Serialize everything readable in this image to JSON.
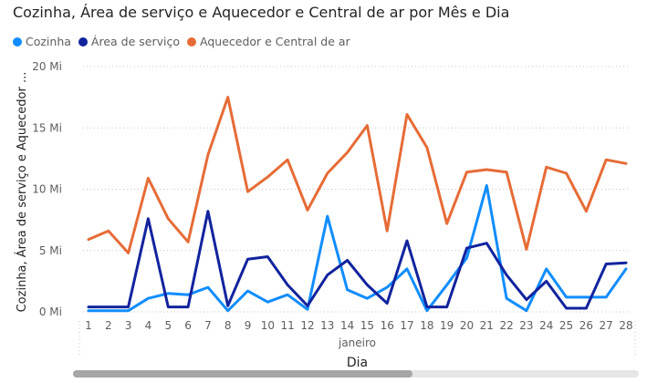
{
  "chart_data": {
    "type": "line",
    "title": "Cozinha, Área de serviço e Aquecedor e Central de ar por Mês e Dia",
    "xlabel": "Dia",
    "xgroup_label": "janeiro",
    "ylabel": "Cozinha, Área de serviço e Aquecedor ...",
    "ylim": [
      0,
      20
    ],
    "y_ticks": [
      "0 Mi",
      "5 Mi",
      "10 Mi",
      "15 Mi",
      "20 Mi"
    ],
    "y_tick_values": [
      0,
      5,
      10,
      15,
      20
    ],
    "grid": true,
    "legend_position": "top-left",
    "categories": [
      "1",
      "2",
      "3",
      "4",
      "5",
      "6",
      "7",
      "8",
      "9",
      "10",
      "11",
      "12",
      "13",
      "14",
      "15",
      "16",
      "17",
      "18",
      "19",
      "20",
      "21",
      "22",
      "23",
      "24",
      "25",
      "26",
      "27",
      "28"
    ],
    "series": [
      {
        "name": "Cozinha",
        "color": "#118dff",
        "values": [
          0.1,
          0.1,
          0.1,
          1.1,
          1.5,
          1.4,
          2.0,
          0.1,
          1.7,
          0.8,
          1.4,
          0.2,
          7.8,
          1.8,
          1.1,
          2.0,
          3.5,
          0.1,
          2.2,
          4.4,
          10.3,
          1.1,
          0.1,
          3.5,
          1.2,
          1.2,
          1.2,
          3.5
        ]
      },
      {
        "name": "Área de serviço",
        "color": "#12239e",
        "values": [
          0.4,
          0.4,
          0.4,
          7.6,
          0.4,
          0.4,
          8.2,
          0.5,
          4.3,
          4.5,
          2.2,
          0.5,
          3.0,
          4.2,
          2.2,
          0.7,
          5.8,
          0.4,
          0.4,
          5.2,
          5.6,
          3.0,
          1.0,
          2.5,
          0.3,
          0.3,
          3.9,
          4.0
        ]
      },
      {
        "name": "Aquecedor e Central de ar",
        "color": "#e66c37",
        "values": [
          5.9,
          6.6,
          4.8,
          10.9,
          7.6,
          5.7,
          12.8,
          17.5,
          9.8,
          11.0,
          12.4,
          8.3,
          11.3,
          13.0,
          15.2,
          6.6,
          16.1,
          13.4,
          7.2,
          11.4,
          11.6,
          11.4,
          5.1,
          11.8,
          11.3,
          8.2,
          12.4,
          12.1
        ]
      }
    ]
  }
}
